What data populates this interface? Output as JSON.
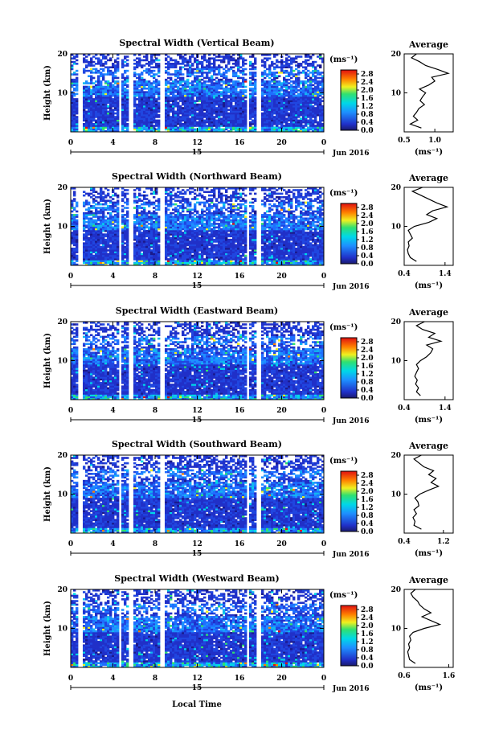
{
  "chart_data": [
    {
      "type": "heatmap",
      "title": "Spectral Width (Vertical Beam)",
      "ylabel": "Height (km)",
      "y_ticks": [
        "20",
        "10"
      ],
      "ylim": [
        0,
        20
      ],
      "xlim": [
        0,
        24
      ],
      "x_ticks": [
        "0",
        "4",
        "8",
        "12",
        "16",
        "20",
        "0"
      ],
      "day_label": "15",
      "date_label": "Jun 2016",
      "colorbar": {
        "unit": "(ms⁻¹)",
        "ticks": [
          "2.8",
          "2.4",
          "2.0",
          "1.6",
          "1.2",
          "0.8",
          "0.4",
          "0.0"
        ],
        "range": [
          0,
          3.0
        ]
      },
      "data_gaps_hours": [
        [
          0.6,
          1.1
        ],
        [
          4.6,
          4.9
        ],
        [
          5.6,
          5.9
        ],
        [
          8.4,
          8.8
        ],
        [
          16.7,
          17.0
        ],
        [
          17.6,
          18.0
        ]
      ],
      "profile": {
        "title": "Average",
        "xlabel": "(ms⁻¹)",
        "x_ticks": [
          "0.5",
          "1.0"
        ],
        "xlim": [
          0.5,
          1.3
        ],
        "heights_km": [
          1,
          2,
          3,
          4,
          5,
          6,
          7,
          8,
          9,
          10,
          11,
          12,
          13,
          14,
          15,
          16,
          17,
          18,
          19,
          20
        ],
        "values": [
          0.78,
          0.6,
          0.72,
          0.65,
          0.7,
          0.74,
          0.83,
          0.76,
          0.8,
          0.85,
          0.75,
          0.9,
          1.0,
          0.95,
          1.22,
          1.05,
          0.85,
          0.75,
          0.62,
          0.7
        ]
      }
    },
    {
      "type": "heatmap",
      "title": "Spectral Width (Northward Beam)",
      "ylabel": "Height (km)",
      "y_ticks": [
        "20",
        "10"
      ],
      "ylim": [
        0,
        20
      ],
      "xlim": [
        0,
        24
      ],
      "x_ticks": [
        "0",
        "4",
        "8",
        "12",
        "16",
        "20",
        "0"
      ],
      "day_label": "15",
      "date_label": "Jun 2016",
      "colorbar": {
        "unit": "(ms⁻¹)",
        "ticks": [
          "2.8",
          "2.4",
          "2.0",
          "1.6",
          "1.2",
          "0.8",
          "0.4",
          "0.0"
        ],
        "range": [
          0,
          3.0
        ]
      },
      "data_gaps_hours": [
        [
          0.6,
          1.1
        ],
        [
          4.6,
          4.9
        ],
        [
          5.6,
          5.9
        ],
        [
          8.4,
          8.8
        ],
        [
          16.7,
          17.0
        ],
        [
          17.6,
          18.0
        ]
      ],
      "profile": {
        "title": "Average",
        "xlabel": "(ms⁻¹)",
        "x_ticks": [
          "0.4",
          "1.4"
        ],
        "xlim": [
          0.4,
          1.6
        ],
        "heights_km": [
          1,
          2,
          3,
          4,
          5,
          6,
          7,
          8,
          9,
          10,
          11,
          12,
          13,
          14,
          15,
          16,
          17,
          18,
          19,
          20
        ],
        "values": [
          0.7,
          0.55,
          0.5,
          0.48,
          0.52,
          0.5,
          0.6,
          0.55,
          0.5,
          0.65,
          1.0,
          1.2,
          0.95,
          1.1,
          1.45,
          1.2,
          1.0,
          0.8,
          0.6,
          0.85
        ]
      }
    },
    {
      "type": "heatmap",
      "title": "Spectral Width (Eastward Beam)",
      "ylabel": "Height (km)",
      "y_ticks": [
        "20",
        "10"
      ],
      "ylim": [
        0,
        20
      ],
      "xlim": [
        0,
        24
      ],
      "x_ticks": [
        "0",
        "4",
        "8",
        "12",
        "16",
        "20",
        "0"
      ],
      "day_label": "15",
      "date_label": "Jun 2016",
      "colorbar": {
        "unit": "(ms⁻¹)",
        "ticks": [
          "2.8",
          "2.4",
          "2.0",
          "1.6",
          "1.2",
          "0.8",
          "0.4",
          "0.0"
        ],
        "range": [
          0,
          3.0
        ]
      },
      "data_gaps_hours": [
        [
          0.6,
          1.1
        ],
        [
          4.6,
          4.9
        ],
        [
          5.6,
          5.9
        ],
        [
          8.4,
          8.8
        ],
        [
          16.7,
          17.0
        ],
        [
          17.6,
          18.0
        ]
      ],
      "profile": {
        "title": "Average",
        "xlabel": "(ms⁻¹)",
        "x_ticks": [
          "0.4",
          "1.4"
        ],
        "xlim": [
          0.4,
          1.6
        ],
        "heights_km": [
          1,
          2,
          3,
          4,
          5,
          6,
          7,
          8,
          9,
          10,
          11,
          12,
          13,
          14,
          15,
          16,
          17,
          18,
          19,
          20
        ],
        "values": [
          0.8,
          0.7,
          0.75,
          0.68,
          0.72,
          0.66,
          0.7,
          0.75,
          0.7,
          0.8,
          0.95,
          1.05,
          1.1,
          0.95,
          1.3,
          1.0,
          1.15,
          0.85,
          0.7,
          0.9
        ]
      }
    },
    {
      "type": "heatmap",
      "title": "Spectral Width (Southward Beam)",
      "ylabel": "Height (km)",
      "y_ticks": [
        "20",
        "10"
      ],
      "ylim": [
        0,
        20
      ],
      "xlim": [
        0,
        24
      ],
      "x_ticks": [
        "0",
        "4",
        "8",
        "12",
        "16",
        "20",
        "0"
      ],
      "day_label": "15",
      "date_label": "Jun 2016",
      "colorbar": {
        "unit": "(ms⁻¹)",
        "ticks": [
          "2.8",
          "2.4",
          "2.0",
          "1.6",
          "1.2",
          "0.8",
          "0.4",
          "0.0"
        ],
        "range": [
          0,
          3.0
        ]
      },
      "data_gaps_hours": [
        [
          0.6,
          1.1
        ],
        [
          4.6,
          4.9
        ],
        [
          5.6,
          5.9
        ],
        [
          8.4,
          8.8
        ],
        [
          16.7,
          17.0
        ],
        [
          17.6,
          18.0
        ]
      ],
      "profile": {
        "title": "Average",
        "xlabel": "(ms⁻¹)",
        "x_ticks": [
          "0.4",
          "1.2"
        ],
        "xlim": [
          0.4,
          1.4
        ],
        "heights_km": [
          1,
          2,
          3,
          4,
          5,
          6,
          7,
          8,
          9,
          10,
          11,
          12,
          13,
          14,
          15,
          16,
          17,
          18,
          19,
          20
        ],
        "values": [
          0.75,
          0.6,
          0.62,
          0.58,
          0.65,
          0.6,
          0.7,
          0.68,
          0.62,
          0.72,
          0.9,
          1.1,
          0.95,
          1.05,
          0.9,
          1.0,
          0.8,
          0.7,
          0.6,
          0.75
        ]
      }
    },
    {
      "type": "heatmap",
      "title": "Spectral Width (Westward Beam)",
      "ylabel": "Height (km)",
      "y_ticks": [
        "20",
        "10"
      ],
      "ylim": [
        0,
        20
      ],
      "xlim": [
        0,
        24
      ],
      "x_ticks": [
        "0",
        "4",
        "8",
        "12",
        "16",
        "20",
        "0"
      ],
      "day_label": "15",
      "date_label": "Jun 2016",
      "colorbar": {
        "unit": "(ms⁻¹)",
        "ticks": [
          "2.8",
          "2.4",
          "2.0",
          "1.6",
          "1.2",
          "0.8",
          "0.4",
          "0.0"
        ],
        "range": [
          0,
          3.0
        ]
      },
      "data_gaps_hours": [
        [
          0.6,
          1.1
        ],
        [
          4.6,
          4.9
        ],
        [
          5.6,
          5.9
        ],
        [
          8.4,
          8.8
        ],
        [
          16.7,
          17.0
        ],
        [
          17.6,
          18.0
        ]
      ],
      "profile": {
        "title": "Average",
        "xlabel": "(ms⁻¹)",
        "x_ticks": [
          "0.6",
          "1.6"
        ],
        "xlim": [
          0.6,
          1.7
        ],
        "heights_km": [
          1,
          2,
          3,
          4,
          5,
          6,
          7,
          8,
          9,
          10,
          11,
          12,
          13,
          14,
          15,
          16,
          17,
          18,
          19,
          20
        ],
        "values": [
          0.85,
          0.72,
          0.7,
          0.68,
          0.72,
          0.7,
          0.75,
          0.72,
          0.8,
          1.05,
          1.4,
          1.2,
          1.0,
          1.2,
          1.05,
          0.95,
          0.9,
          0.8,
          0.75,
          0.85
        ]
      }
    }
  ],
  "footer": {
    "xlabel": "Local Time"
  }
}
